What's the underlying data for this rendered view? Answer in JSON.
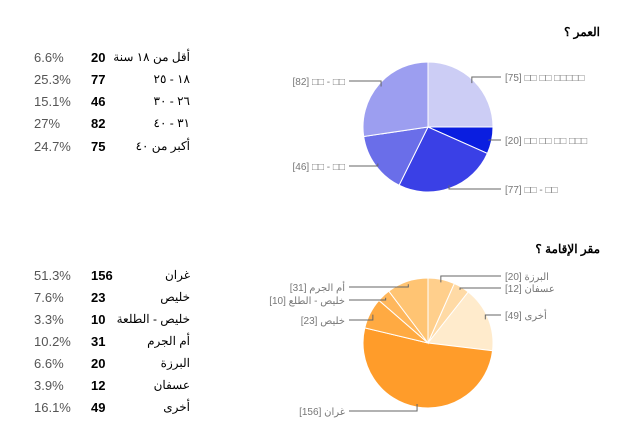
{
  "chart_data": [
    {
      "type": "pie",
      "title": "العمر ؟",
      "categories": [
        "أقل من ١٨ سنة",
        "١٨ - ٢٥",
        "٢٦ - ٣٠",
        "٣١ - ٤٠",
        "أكبر من ٤٠"
      ],
      "values": [
        20,
        77,
        46,
        82,
        75
      ],
      "percent_labels": [
        "6.6%",
        "25.3%",
        "15.1%",
        "27%",
        "24.7%"
      ],
      "slice_labels": [
        "[20] □□ □□ □□ □□□",
        "[77] □□ - □□",
        "[46] □□ - □□",
        "[82] □□ - □□",
        "[75] □□ □□ □□□□□"
      ],
      "colors": [
        "#0a1ee0",
        "#3a40e6",
        "#6a6ee9",
        "#9c9ef0",
        "#cccdf5"
      ],
      "draw_order": [
        4,
        0,
        1,
        2,
        3
      ]
    },
    {
      "type": "pie",
      "title": "مقر الإقامة ؟",
      "categories": [
        "غران",
        "خليص",
        "خليص - الطلعة",
        "أم الجرم",
        "البرزة",
        "عسفان",
        "أخرى"
      ],
      "values": [
        156,
        23,
        10,
        31,
        20,
        12,
        49
      ],
      "percent_labels": [
        "51.3%",
        "7.6%",
        "3.3%",
        "10.2%",
        "6.6%",
        "3.9%",
        "16.1%"
      ],
      "slice_labels": [
        "غران [156]",
        "خليص [23]",
        "خليص - الطلع [10]",
        "أم الجرم [31]",
        "البرزة [20]",
        "عسفان [12]",
        "أخرى [49]"
      ],
      "colors": [
        "#ff9c2a",
        "#ffaa42",
        "#ffb75c",
        "#ffc473",
        "#ffcf8c",
        "#ffdaa5",
        "#ffebcc"
      ],
      "draw_order": [
        4,
        5,
        6,
        0,
        1,
        2,
        3
      ]
    }
  ]
}
